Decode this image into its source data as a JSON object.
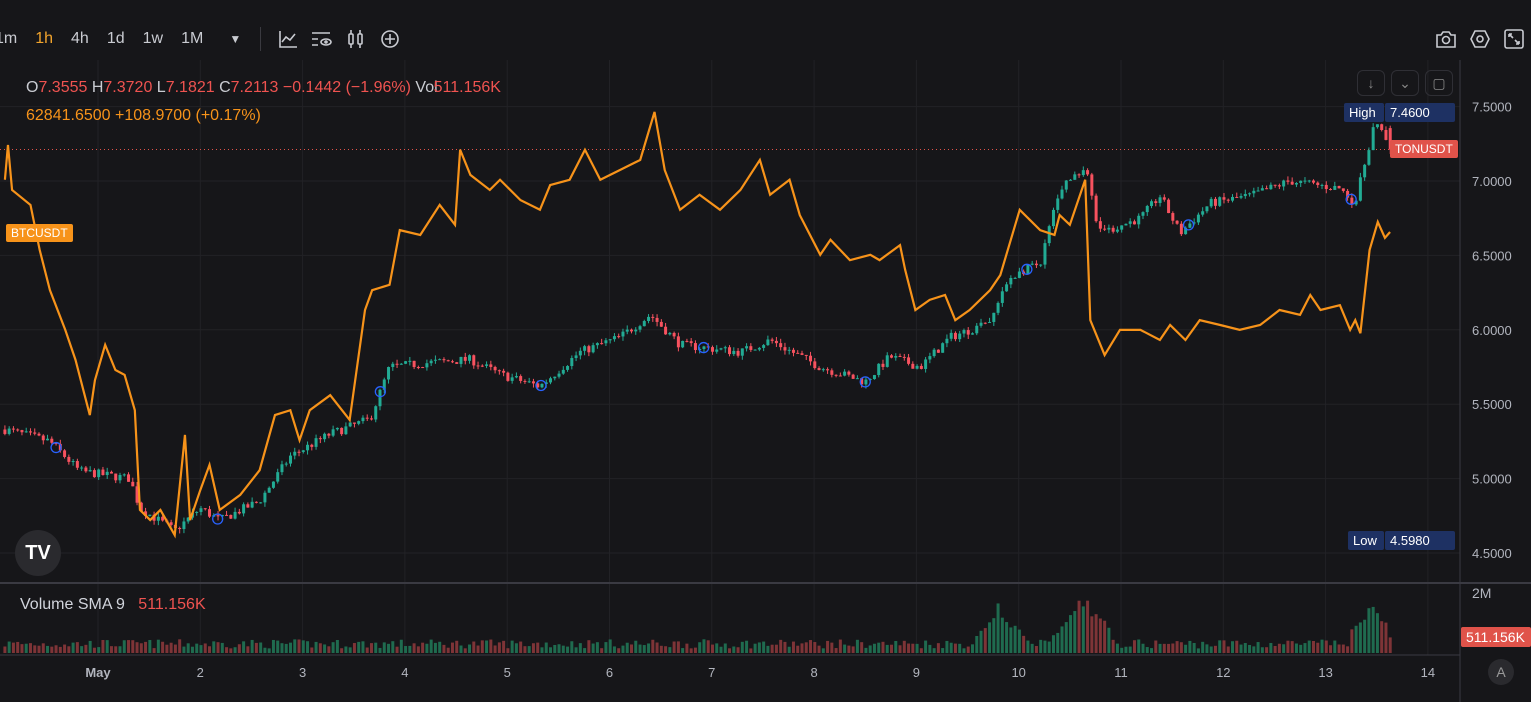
{
  "toolbar": {
    "timeframes": [
      "1m",
      "1h",
      "4h",
      "1d",
      "1w",
      "1M"
    ],
    "active": "1h",
    "more": "▼"
  },
  "legend": {
    "o_label": "O",
    "o": "7.3555",
    "h_label": "H",
    "h": "7.3720",
    "l_label": "L",
    "l": "7.1821",
    "c_label": "C",
    "c": "7.2113",
    "change": "−0.1442 (−1.96%)",
    "vol_label": "Vol",
    "vol": "511.156K",
    "compare": "62841.6500 +108.9700 (+0.17%)"
  },
  "volume_legend": {
    "title": "Volume SMA 9",
    "value": "511.156K"
  },
  "logo": "TV",
  "auto_button": "A",
  "colors": {
    "up": "#22ab94",
    "down": "#f7525f",
    "btc": "#f7931a",
    "tag": "#1e3163"
  },
  "chart_data": {
    "type": "candlestick+line",
    "main_symbol": "TONUSDT",
    "compare_symbol": "BTCUSDT",
    "x_unit": "days since May 1 00:00",
    "x_ticks": [
      {
        "d": 0,
        "label": "May"
      },
      {
        "d": 1,
        "label": "2"
      },
      {
        "d": 2,
        "label": "3"
      },
      {
        "d": 3,
        "label": "4"
      },
      {
        "d": 4,
        "label": "5"
      },
      {
        "d": 5,
        "label": "6"
      },
      {
        "d": 6,
        "label": "7"
      },
      {
        "d": 7,
        "label": "8"
      },
      {
        "d": 8,
        "label": "9"
      },
      {
        "d": 9,
        "label": "10"
      },
      {
        "d": 10,
        "label": "11"
      },
      {
        "d": 11,
        "label": "12"
      },
      {
        "d": 12,
        "label": "13"
      },
      {
        "d": 13,
        "label": "14"
      }
    ],
    "y_ticks": [
      "7.5000",
      "7.0000",
      "6.5000",
      "6.0000",
      "5.5000",
      "5.0000",
      "4.5000"
    ],
    "ylim": [
      4.4,
      7.7
    ],
    "high": {
      "label": "High",
      "value": "7.4600"
    },
    "low": {
      "label": "Low",
      "value": "4.5980"
    },
    "last_price": 7.2113,
    "last_ohlc": [
      7.3555,
      7.372,
      7.1821,
      7.2113
    ],
    "volume_axis": {
      "tick": "2M",
      "tick_value": 2000000,
      "last": "511.156K"
    },
    "ton_path": [
      [
        -0.91,
        5.33
      ],
      [
        -0.47,
        5.25
      ],
      [
        -0.18,
        5.05
      ],
      [
        0.31,
        5.0
      ],
      [
        0.41,
        4.8
      ],
      [
        0.75,
        4.65
      ],
      [
        1.0,
        4.8
      ],
      [
        1.19,
        4.72
      ],
      [
        1.58,
        4.85
      ],
      [
        1.88,
        5.15
      ],
      [
        2.27,
        5.3
      ],
      [
        2.66,
        5.4
      ],
      [
        2.85,
        5.75
      ],
      [
        3.25,
        5.78
      ],
      [
        3.64,
        5.8
      ],
      [
        3.93,
        5.7
      ],
      [
        4.32,
        5.62
      ],
      [
        4.71,
        5.85
      ],
      [
        5.1,
        5.95
      ],
      [
        5.4,
        6.1
      ],
      [
        5.69,
        5.9
      ],
      [
        6.28,
        5.85
      ],
      [
        6.57,
        5.93
      ],
      [
        7.06,
        5.75
      ],
      [
        7.5,
        5.65
      ],
      [
        7.74,
        5.82
      ],
      [
        8.04,
        5.75
      ],
      [
        8.33,
        5.95
      ],
      [
        8.72,
        6.05
      ],
      [
        8.91,
        6.35
      ],
      [
        9.21,
        6.45
      ],
      [
        9.4,
        6.95
      ],
      [
        9.65,
        7.1
      ],
      [
        9.79,
        6.65
      ],
      [
        10.19,
        6.75
      ],
      [
        10.38,
        6.9
      ],
      [
        10.58,
        6.65
      ],
      [
        10.87,
        6.85
      ],
      [
        11.26,
        6.9
      ],
      [
        11.65,
        7.0
      ],
      [
        12.14,
        6.95
      ],
      [
        12.29,
        6.85
      ],
      [
        12.48,
        7.4
      ],
      [
        12.63,
        7.22
      ]
    ],
    "btc": [
      [
        -0.91,
        63920
      ],
      [
        -0.88,
        64640
      ],
      [
        -0.84,
        63710
      ],
      [
        -0.66,
        63400
      ],
      [
        -0.57,
        62470
      ],
      [
        -0.47,
        61640
      ],
      [
        -0.32,
        60820
      ],
      [
        -0.22,
        60200
      ],
      [
        -0.08,
        59060
      ],
      [
        -0.03,
        59780
      ],
      [
        0.07,
        60510
      ],
      [
        0.17,
        59990
      ],
      [
        0.26,
        59890
      ],
      [
        0.36,
        59160
      ],
      [
        0.41,
        57100
      ],
      [
        0.51,
        56890
      ],
      [
        0.61,
        57100
      ],
      [
        0.75,
        56580
      ],
      [
        0.85,
        58650
      ],
      [
        0.9,
        56890
      ],
      [
        1.0,
        57510
      ],
      [
        1.09,
        58030
      ],
      [
        1.19,
        57100
      ],
      [
        1.39,
        57410
      ],
      [
        1.58,
        57920
      ],
      [
        1.73,
        59060
      ],
      [
        1.88,
        59160
      ],
      [
        1.97,
        58540
      ],
      [
        2.07,
        59160
      ],
      [
        2.27,
        59470
      ],
      [
        2.46,
        58960
      ],
      [
        2.61,
        61230
      ],
      [
        2.68,
        61640
      ],
      [
        2.85,
        61750
      ],
      [
        2.95,
        62880
      ],
      [
        3.15,
        62780
      ],
      [
        3.34,
        63400
      ],
      [
        3.49,
        62990
      ],
      [
        3.54,
        64540
      ],
      [
        3.64,
        64020
      ],
      [
        3.83,
        63710
      ],
      [
        3.93,
        63920
      ],
      [
        4.13,
        63500
      ],
      [
        4.32,
        63300
      ],
      [
        4.42,
        63810
      ],
      [
        4.61,
        63920
      ],
      [
        4.76,
        64540
      ],
      [
        4.91,
        63920
      ],
      [
        5.1,
        64120
      ],
      [
        5.3,
        64330
      ],
      [
        5.44,
        65320
      ],
      [
        5.54,
        64120
      ],
      [
        5.69,
        63300
      ],
      [
        5.88,
        63610
      ],
      [
        6.08,
        63300
      ],
      [
        6.28,
        63710
      ],
      [
        6.47,
        64330
      ],
      [
        6.57,
        63610
      ],
      [
        6.76,
        63920
      ],
      [
        6.86,
        63190
      ],
      [
        7.06,
        62370
      ],
      [
        7.16,
        62680
      ],
      [
        7.35,
        62260
      ],
      [
        7.55,
        62370
      ],
      [
        7.64,
        62260
      ],
      [
        7.84,
        62570
      ],
      [
        7.89,
        62060
      ],
      [
        7.99,
        61230
      ],
      [
        8.13,
        61440
      ],
      [
        8.28,
        61540
      ],
      [
        8.38,
        61020
      ],
      [
        8.52,
        61230
      ],
      [
        8.72,
        61640
      ],
      [
        8.82,
        61950
      ],
      [
        9.01,
        63300
      ],
      [
        9.21,
        62880
      ],
      [
        9.35,
        62780
      ],
      [
        9.4,
        63190
      ],
      [
        9.5,
        62990
      ],
      [
        9.65,
        63920
      ],
      [
        9.7,
        61020
      ],
      [
        9.84,
        60300
      ],
      [
        9.99,
        60820
      ],
      [
        10.19,
        60820
      ],
      [
        10.38,
        60610
      ],
      [
        10.48,
        60920
      ],
      [
        10.63,
        60610
      ],
      [
        10.77,
        61020
      ],
      [
        10.97,
        60920
      ],
      [
        11.16,
        60820
      ],
      [
        11.36,
        60920
      ],
      [
        11.55,
        61230
      ],
      [
        11.75,
        61130
      ],
      [
        11.85,
        61540
      ],
      [
        11.95,
        61230
      ],
      [
        12.14,
        61330
      ],
      [
        12.24,
        60820
      ],
      [
        12.29,
        61020
      ],
      [
        12.34,
        60750
      ],
      [
        12.43,
        62470
      ],
      [
        12.51,
        63050
      ],
      [
        12.58,
        62720
      ],
      [
        12.63,
        62841
      ]
    ],
    "btc_range": [
      56520,
      65320
    ],
    "event_markers": [
      -0.41,
      1.17,
      2.76,
      4.33,
      5.92,
      7.5,
      9.08,
      10.66,
      12.25
    ],
    "volume_spikes": [
      [
        8.8,
        1650000
      ],
      [
        9.65,
        2050000
      ],
      [
        9.55,
        1400000
      ],
      [
        12.47,
        1700000
      ]
    ]
  }
}
